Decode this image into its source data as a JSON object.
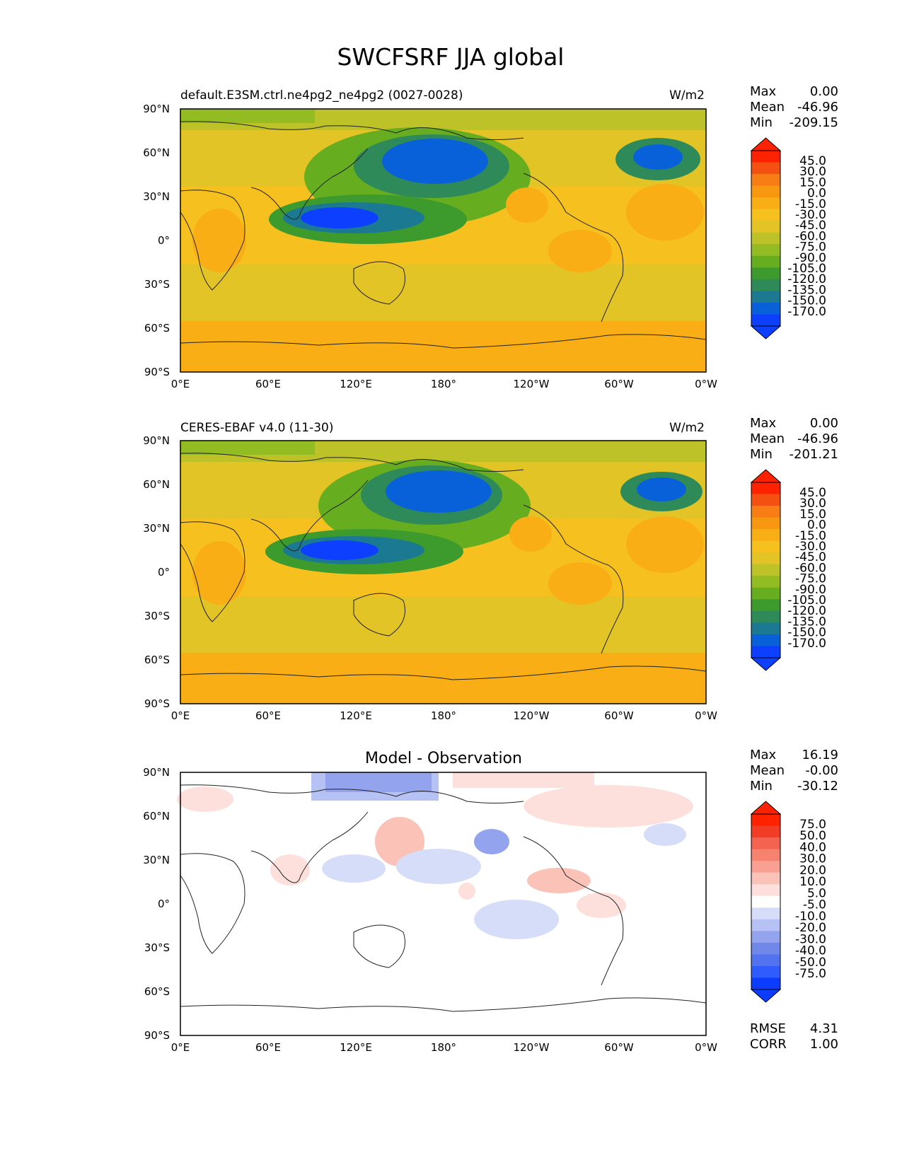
{
  "figure": {
    "title": "SWCFSRF JJA global"
  },
  "panels": [
    {
      "id": "test",
      "title_left": "default.E3SM.ctrl.ne4pg2_ne4pg2 (0027-0028)",
      "title_center": "",
      "units": "W/m2",
      "stats": {
        "max_label": "Max",
        "max": "0.00",
        "mean_label": "Mean",
        "mean": "-46.96",
        "min_label": "Min",
        "min": "-209.15"
      },
      "colorbar_labels": [
        "45.0",
        "30.0",
        "15.0",
        "0.0",
        "-15.0",
        "-30.0",
        "-45.0",
        "-60.0",
        "-75.0",
        "-90.0",
        "-105.0",
        "-120.0",
        "-135.0",
        "-150.0",
        "-170.0"
      ]
    },
    {
      "id": "ref",
      "title_left": "CERES-EBAF v4.0 (11-30)",
      "title_center": "",
      "units": "W/m2",
      "stats": {
        "max_label": "Max",
        "max": "0.00",
        "mean_label": "Mean",
        "mean": "-46.96",
        "min_label": "Min",
        "min": "-201.21"
      },
      "colorbar_labels": [
        "45.0",
        "30.0",
        "15.0",
        "0.0",
        "-15.0",
        "-30.0",
        "-45.0",
        "-60.0",
        "-75.0",
        "-90.0",
        "-105.0",
        "-120.0",
        "-135.0",
        "-150.0",
        "-170.0"
      ]
    },
    {
      "id": "diff",
      "title_left": "",
      "title_center": "Model - Observation",
      "units": "",
      "stats": {
        "max_label": "Max",
        "max": "16.19",
        "mean_label": "Mean",
        "mean": "-0.00",
        "min_label": "Min",
        "min": "-30.12"
      },
      "colorbar_labels": [
        "75.0",
        "50.0",
        "40.0",
        "30.0",
        "20.0",
        "10.0",
        "5.0",
        "-5.0",
        "-10.0",
        "-20.0",
        "-30.0",
        "-40.0",
        "-50.0",
        "-75.0"
      ],
      "extra_stats": {
        "rmse_label": "RMSE",
        "rmse": "4.31",
        "corr_label": "CORR",
        "corr": "1.00"
      }
    }
  ],
  "axes": {
    "lat_ticks": [
      "90°N",
      "60°N",
      "30°N",
      "0°",
      "30°S",
      "60°S",
      "90°S"
    ],
    "lon_ticks": [
      "0°E",
      "60°E",
      "120°E",
      "180°",
      "120°W",
      "60°W",
      "0°W"
    ]
  },
  "colors": {
    "field_ramp": [
      "#0d3fff",
      "#0961d9",
      "#1b7a91",
      "#2f8a5a",
      "#3d9a2c",
      "#66ad20",
      "#93bb22",
      "#bcc227",
      "#e2c427",
      "#f6c01e",
      "#f8ae14",
      "#f89810",
      "#f77d14",
      "#f45012",
      "#ff2200"
    ],
    "diff_ramp": [
      "#0b3cff",
      "#2f5cff",
      "#5173f0",
      "#6f88e9",
      "#93a3ee",
      "#b7c2f4",
      "#d6ddf9",
      "#ffffff",
      "#fde0dc",
      "#fbc2b8",
      "#f9a092",
      "#f6836f",
      "#f3634f",
      "#f23c26",
      "#ff2200"
    ]
  }
}
